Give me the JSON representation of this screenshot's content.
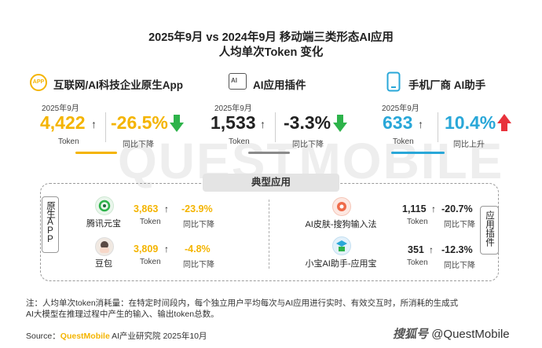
{
  "title": {
    "line1": "2025年9月 vs 2024年9月 移动端三类形态AI应用",
    "line2": "人均单次Token 变化"
  },
  "watermark": "QUESTMOBILE",
  "categories": [
    {
      "icon_text": "APP",
      "label": "互联网/AI科技企业原生App",
      "period": "2025年9月",
      "value": "4,422",
      "up_glyph": "↑",
      "value_caption": "Token",
      "change": "-26.5%",
      "change_caption": "同比下降",
      "value_color": "#f4b400",
      "change_color": "#f4b400",
      "arrow_color": "#2db34a",
      "underline_color": "#f4b400"
    },
    {
      "icon_text": "AI",
      "label": "AI应用插件",
      "period": "2025年9月",
      "value": "1,533",
      "up_glyph": "↑",
      "value_caption": "Token",
      "change": "-3.3%",
      "change_caption": "同比下降",
      "value_color": "#222222",
      "change_color": "#222222",
      "arrow_color": "#2db34a",
      "underline_color": "#8a8a8a"
    },
    {
      "icon_text": "",
      "label": "手机厂商 AI助手",
      "period": "2025年9月",
      "value": "633",
      "up_glyph": "↑",
      "value_caption": "Token",
      "change": "10.4%",
      "change_caption": "同比上升",
      "value_color": "#29a7d8",
      "change_color": "#29a7d8",
      "arrow_color": "#e8323b",
      "underline_color": "#29a7d8"
    }
  ],
  "section": {
    "label": "典型应用",
    "left_group": "原生APP",
    "right_group": "应用插件"
  },
  "apps": [
    {
      "name": "腾讯元宝",
      "value": "3,863",
      "up_glyph": "↑",
      "value_caption": "Token",
      "change": "-23.9%",
      "change_caption": "同比下降"
    },
    {
      "name": "豆包",
      "value": "3,809",
      "up_glyph": "↑",
      "value_caption": "Token",
      "change": "-4.8%",
      "change_caption": "同比下降"
    },
    {
      "name": "AI皮肤-搜狗输入法",
      "value": "1,115",
      "up_glyph": "↑",
      "value_caption": "Token",
      "change": "-20.7%",
      "change_caption": "同比下降"
    },
    {
      "name": "小宝AI助手-应用宝",
      "value": "351",
      "up_glyph": "↑",
      "value_caption": "Token",
      "change": "-12.3%",
      "change_caption": "同比下降"
    }
  ],
  "note": {
    "line1": "注：人均单次token消耗量：在特定时间段内，每个独立用户平均每次与AI应用进行实时、有效交互时，所消耗的生成式",
    "line2": "AI大模型在推理过程中产生的输入、输出token总数。"
  },
  "source": {
    "prefix": "Source：",
    "brand": "QuestMobile",
    "rest": " AI产业研究院 2025年10月"
  },
  "credit": {
    "platform": "搜狐号",
    "handle": "@QuestMobile"
  },
  "colors": {
    "yellow": "#f4b400",
    "blue": "#29a7d8",
    "green": "#2db34a",
    "red": "#e8323b"
  }
}
